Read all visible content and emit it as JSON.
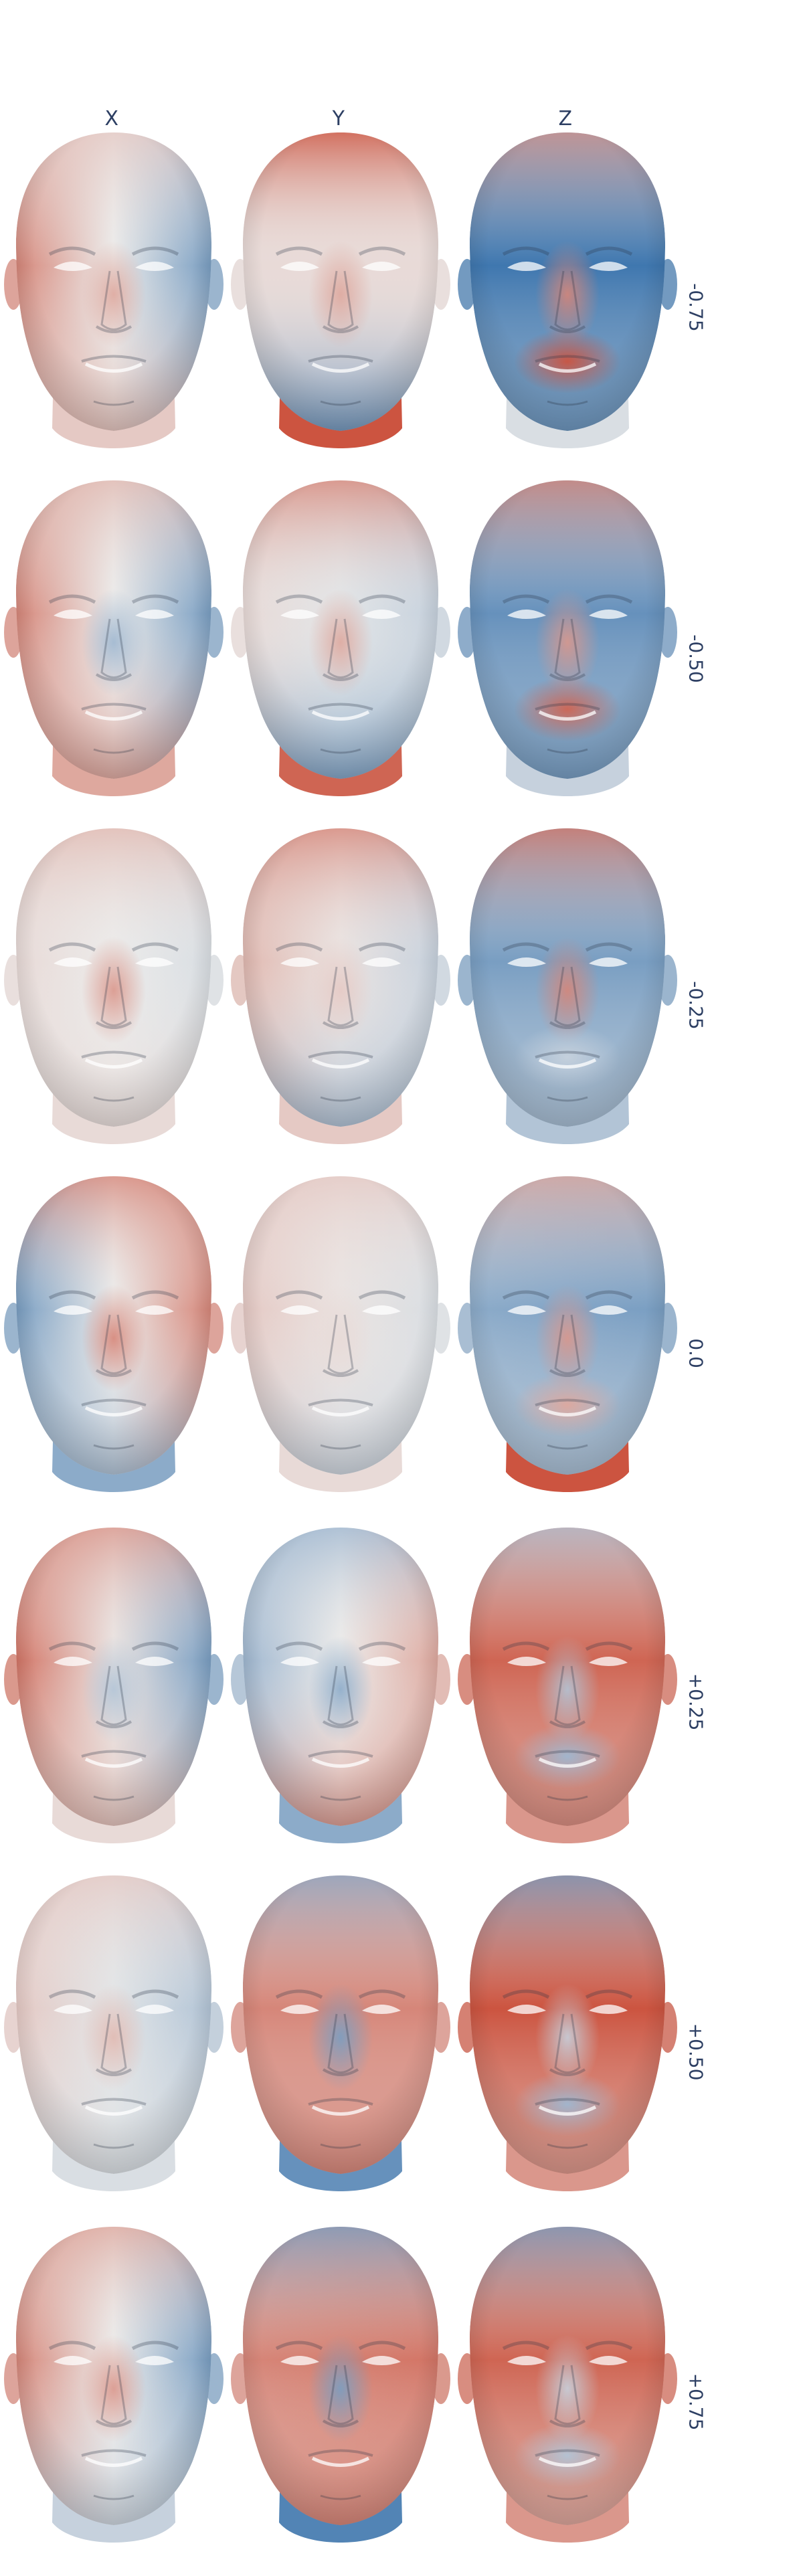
{
  "column_labels": [
    "X",
    "Y",
    "Z"
  ],
  "row_labels": [
    "-0.75",
    "-0.50",
    "-0.25",
    "0.0",
    "+0.25",
    "+0.50",
    "+0.75"
  ],
  "colors": {
    "red": "#c8432d",
    "blue": "#2c6aa8",
    "neutral": "#ecebea",
    "label": "#2d3f63"
  },
  "heatmaps": [
    [
      {
        "left": 0.6,
        "right": -0.6,
        "forehead": 0.2,
        "chin": 0.3,
        "neck": 0.2,
        "nose": 0.4
      },
      {
        "left": 0.1,
        "right": 0.1,
        "forehead": 0.9,
        "chin": -0.8,
        "neck": 0.9,
        "nose": 0.4
      },
      {
        "left": -0.9,
        "right": -0.9,
        "forehead": 0.5,
        "chin": -0.6,
        "neck": -0.1,
        "nose": 0.6,
        "mouth": 0.9
      }
    ],
    [
      {
        "left": 0.6,
        "right": -0.6,
        "forehead": 0.3,
        "chin": 0.5,
        "neck": 0.4,
        "nose": -0.4
      },
      {
        "left": 0.1,
        "right": -0.2,
        "forehead": 0.6,
        "chin": -0.7,
        "neck": 0.8,
        "nose": 0.4
      },
      {
        "left": -0.7,
        "right": -0.7,
        "forehead": 0.6,
        "chin": -0.6,
        "neck": -0.2,
        "nose": 0.5,
        "mouth": 0.8
      }
    ],
    [
      {
        "left": 0.1,
        "right": -0.1,
        "forehead": 0.3,
        "chin": 0.1,
        "neck": 0.1,
        "nose": 0.5
      },
      {
        "left": 0.3,
        "right": -0.2,
        "forehead": 0.6,
        "chin": -0.4,
        "neck": 0.2,
        "nose": 0.2
      },
      {
        "left": -0.6,
        "right": -0.6,
        "forehead": 0.7,
        "chin": -0.3,
        "neck": -0.3,
        "nose": 0.6,
        "mouth": -0.2
      }
    ],
    [
      {
        "left": -0.6,
        "right": 0.6,
        "forehead": 0.6,
        "chin": -0.4,
        "neck": -0.5,
        "nose": 0.6
      },
      {
        "left": 0.2,
        "right": -0.1,
        "forehead": 0.2,
        "chin": -0.2,
        "neck": 0.1,
        "nose": 0.1
      },
      {
        "left": -0.5,
        "right": -0.6,
        "forehead": 0.4,
        "chin": -0.3,
        "neck": 0.9,
        "nose": 0.5,
        "mouth": 0.4
      }
    ],
    [
      {
        "left": 0.7,
        "right": -0.6,
        "forehead": 0.5,
        "chin": 0.3,
        "neck": 0.1,
        "nose": -0.3
      },
      {
        "left": -0.4,
        "right": 0.4,
        "forehead": -0.4,
        "chin": 0.6,
        "neck": -0.5,
        "nose": -0.5
      },
      {
        "left": 0.8,
        "right": 0.8,
        "forehead": -0.3,
        "chin": 0.5,
        "neck": 0.5,
        "nose": -0.3,
        "mouth": -0.4
      }
    ],
    [
      {
        "left": 0.2,
        "right": -0.3,
        "forehead": 0.2,
        "chin": -0.1,
        "neck": -0.1,
        "nose": 0.3
      },
      {
        "left": 0.6,
        "right": 0.6,
        "forehead": -0.5,
        "chin": 0.6,
        "neck": -0.7,
        "nose": -0.6
      },
      {
        "left": 0.9,
        "right": 0.9,
        "forehead": -0.6,
        "chin": 0.4,
        "neck": 0.5,
        "nose": -0.2,
        "mouth": -0.4
      }
    ],
    [
      {
        "left": 0.6,
        "right": -0.6,
        "forehead": 0.4,
        "chin": -0.2,
        "neck": -0.2,
        "nose": 0.5
      },
      {
        "left": 0.6,
        "right": 0.7,
        "forehead": -0.6,
        "chin": 0.6,
        "neck": -0.8,
        "nose": -0.6
      },
      {
        "left": 0.8,
        "right": 0.8,
        "forehead": -0.6,
        "chin": 0.3,
        "neck": 0.5,
        "nose": -0.2,
        "mouth": -0.3
      }
    ]
  ]
}
